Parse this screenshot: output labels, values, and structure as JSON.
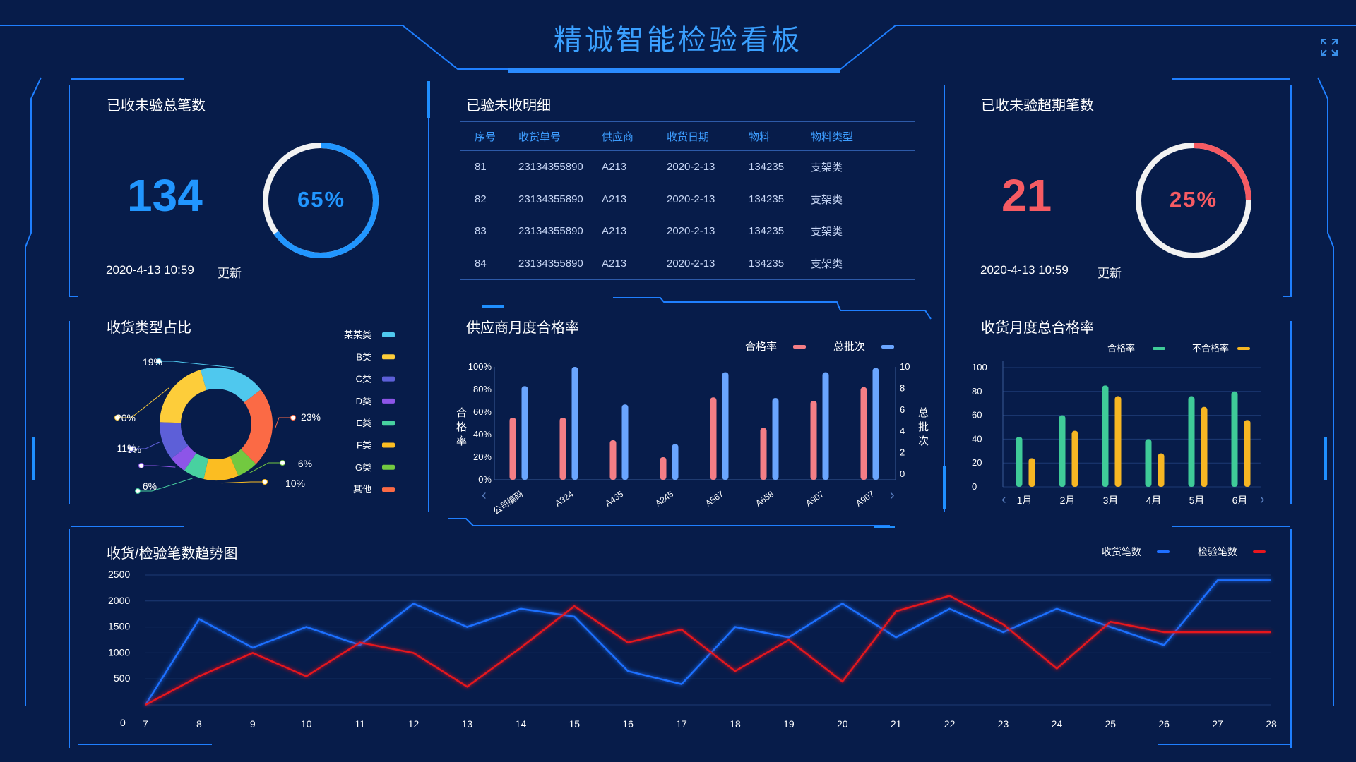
{
  "header": {
    "title": "精诚智能检验看板",
    "fullscreen_icon": "expand-icon"
  },
  "colors": {
    "accent": "#1f8fff",
    "danger": "#f65b63",
    "frame": "#1f7fff"
  },
  "panel_total": {
    "title": "已收未验总笔数",
    "value": "134",
    "percent": 65,
    "percent_label": "65%",
    "timestamp": "2020-4-13  10:59",
    "update_label": "更新"
  },
  "panel_overdue": {
    "title": "已收未验超期笔数",
    "value": "21",
    "percent": 25,
    "percent_label": "25%",
    "timestamp": "2020-4-13  10:59",
    "update_label": "更新"
  },
  "detail_table": {
    "title": "已验未收明细",
    "columns": [
      "序号",
      "收货单号",
      "供应商",
      "收货日期",
      "物料",
      "物料类型"
    ],
    "rows": [
      [
        "81",
        "23134355890",
        "A213",
        "2020-2-13",
        "134235",
        "支架类"
      ],
      [
        "82",
        "23134355890",
        "A213",
        "2020-2-13",
        "134235",
        "支架类"
      ],
      [
        "83",
        "23134355890",
        "A213",
        "2020-2-13",
        "134235",
        "支架类"
      ],
      [
        "84",
        "23134355890",
        "A213",
        "2020-2-13",
        "134235",
        "支架类"
      ]
    ]
  },
  "chart_data": [
    {
      "id": "type_share",
      "type": "pie",
      "title": "收货类型占比",
      "legend": [
        "某某类",
        "B类",
        "C类",
        "D类",
        "E类",
        "F类",
        "G类",
        "其他"
      ],
      "slices": [
        {
          "name": "某某类",
          "value": 19,
          "label": "19%",
          "color": "#4fc8ee"
        },
        {
          "name": "其他",
          "value": 23,
          "label": "23%",
          "color": "#fb6a45"
        },
        {
          "name": "G类",
          "value": 6,
          "label": "6%",
          "color": "#72c940"
        },
        {
          "name": "F类",
          "value": 10,
          "label": "10%",
          "color": "#fbbd22"
        },
        {
          "name": "E类",
          "value": 6,
          "label": "6%",
          "color": "#48d1a0"
        },
        {
          "name": "D类",
          "value": 5,
          "label": "5%",
          "color": "#8d55e8"
        },
        {
          "name": "C类",
          "value": 11,
          "label": "11%",
          "color": "#5d5fd8"
        },
        {
          "name": "B类",
          "value": 20,
          "label": "20%",
          "color": "#fdcd3a"
        }
      ]
    },
    {
      "id": "supplier_pass",
      "type": "bar",
      "title": "供应商月度合格率",
      "categories": [
        "公司编码",
        "A324",
        "A435",
        "A245",
        "A567",
        "A658",
        "A907",
        "A907"
      ],
      "series": [
        {
          "name": "合格率",
          "axis": "left",
          "values": [
            55,
            55,
            35,
            20,
            73,
            46,
            70,
            82
          ],
          "color": "#f47e86"
        },
        {
          "name": "总批次",
          "axis": "right",
          "values": [
            8.2,
            10,
            6.5,
            2.8,
            9.5,
            7.1,
            9.5,
            9.9
          ],
          "color": "#6aa5ff"
        }
      ],
      "ylabel": "合格率",
      "y2label": "总批次",
      "yticks": [
        "0%",
        "20%",
        "40%",
        "60%",
        "80%",
        "100%"
      ],
      "ylim": [
        0,
        100
      ],
      "y2ticks": [
        "0",
        "2",
        "4",
        "6",
        "8",
        "10"
      ],
      "y2lim": [
        0,
        10
      ]
    },
    {
      "id": "monthly_pass",
      "type": "bar",
      "title": "收货月度总合格率",
      "categories": [
        "1月",
        "2月",
        "3月",
        "4月",
        "5月",
        "6月"
      ],
      "series": [
        {
          "name": "合格率",
          "values": [
            42,
            60,
            85,
            40,
            76,
            80
          ],
          "color": "#3fcb98"
        },
        {
          "name": "不合格率",
          "values": [
            24,
            47,
            76,
            28,
            67,
            56
          ],
          "color": "#f6b623"
        }
      ],
      "yticks": [
        "0",
        "20",
        "40",
        "60",
        "80",
        "100"
      ],
      "ylim": [
        0,
        100
      ]
    },
    {
      "id": "trend",
      "type": "line",
      "title": "收货/检验笔数趋势图",
      "x": [
        "7",
        "8",
        "9",
        "10",
        "11",
        "12",
        "13",
        "14",
        "15",
        "16",
        "17",
        "18",
        "19",
        "20",
        "21",
        "22",
        "23",
        "24",
        "25",
        "26",
        "27",
        "28"
      ],
      "series": [
        {
          "name": "收货笔数",
          "color": "#1e6fff",
          "values": [
            0,
            1650,
            1100,
            1500,
            1150,
            1950,
            1500,
            1850,
            1700,
            650,
            400,
            1500,
            1300,
            1950,
            1300,
            1850,
            1400,
            1850,
            1500,
            1150,
            2400,
            2400
          ]
        },
        {
          "name": "检验笔数",
          "color": "#e8161e",
          "values": [
            0,
            550,
            1000,
            550,
            1200,
            1000,
            350,
            1100,
            1900,
            1200,
            1450,
            650,
            1250,
            450,
            1800,
            2100,
            1550,
            700,
            1600,
            1400,
            1400,
            1400
          ]
        }
      ],
      "yticks": [
        "0",
        "500",
        "1000",
        "1500",
        "2000",
        "2500"
      ],
      "ylim": [
        0,
        2500
      ]
    }
  ]
}
